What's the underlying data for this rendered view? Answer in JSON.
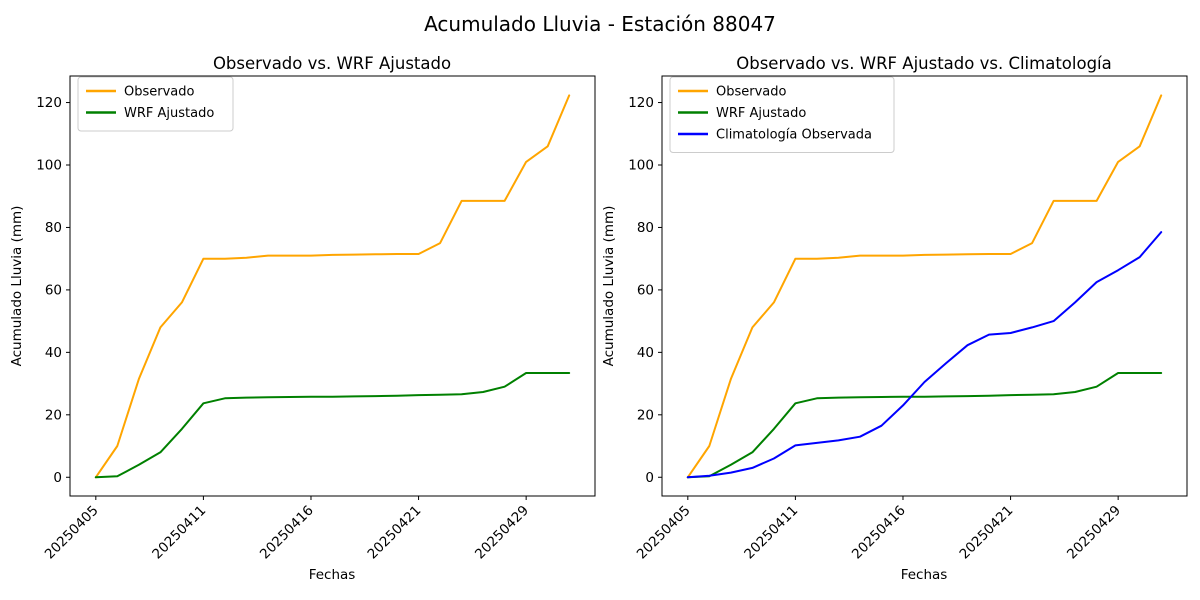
{
  "suptitle": "Acumulado Lluvia - Estación 88047",
  "accent_colors": {
    "observado": "#FFA500",
    "wrf_ajustado": "#008000",
    "climatologia": "#0000FF"
  },
  "chart_data": [
    {
      "type": "line",
      "title": "Observado vs. WRF Ajustado",
      "xlabel": "Fechas",
      "ylabel": "Acumulado Lluvia (mm)",
      "grid": false,
      "legend_position": "upper left",
      "yticks": [
        0,
        20,
        40,
        60,
        80,
        100,
        120
      ],
      "ylim": [
        -6,
        128.5
      ],
      "xlim": [
        -1.2,
        23.2
      ],
      "xtick_positions": [
        0,
        5,
        10,
        15,
        20
      ],
      "xtick_labels": [
        "20250405",
        "20250411",
        "20250416",
        "20250421",
        "20250429"
      ],
      "series": [
        {
          "name": "Observado",
          "color": "#FFA500",
          "values": [
            0,
            10,
            31.5,
            48,
            56,
            70,
            70,
            70.3,
            71,
            71,
            71,
            71.2,
            71.3,
            71.4,
            71.5,
            71.5,
            75,
            88.5,
            88.5,
            88.5,
            101,
            106,
            122.3
          ]
        },
        {
          "name": "WRF Ajustado",
          "color": "#008000",
          "values": [
            0,
            0.3,
            4,
            8,
            15.5,
            23.7,
            25.3,
            25.5,
            25.6,
            25.7,
            25.8,
            25.8,
            25.9,
            26,
            26.1,
            26.3,
            26.4,
            26.6,
            27.3,
            29,
            33.4,
            33.4,
            33.4
          ]
        }
      ]
    },
    {
      "type": "line",
      "title": "Observado vs. WRF Ajustado vs. Climatología",
      "xlabel": "Fechas",
      "ylabel": "Acumulado Lluvia (mm)",
      "grid": false,
      "legend_position": "upper left",
      "yticks": [
        0,
        20,
        40,
        60,
        80,
        100,
        120
      ],
      "ylim": [
        -6,
        128.5
      ],
      "xlim": [
        -1.2,
        23.2
      ],
      "xtick_positions": [
        0,
        5,
        10,
        15,
        20
      ],
      "xtick_labels": [
        "20250405",
        "20250411",
        "20250416",
        "20250421",
        "20250429"
      ],
      "series": [
        {
          "name": "Observado",
          "color": "#FFA500",
          "values": [
            0,
            10,
            31.5,
            48,
            56,
            70,
            70,
            70.3,
            71,
            71,
            71,
            71.2,
            71.3,
            71.4,
            71.5,
            71.5,
            75,
            88.5,
            88.5,
            88.5,
            101,
            106,
            122.3
          ]
        },
        {
          "name": "WRF Ajustado",
          "color": "#008000",
          "values": [
            0,
            0.3,
            4,
            8,
            15.5,
            23.7,
            25.3,
            25.5,
            25.6,
            25.7,
            25.8,
            25.8,
            25.9,
            26,
            26.1,
            26.3,
            26.4,
            26.6,
            27.3,
            29,
            33.4,
            33.4,
            33.4
          ]
        },
        {
          "name": "Climatología Observada",
          "color": "#0000FF",
          "values": [
            0,
            0.5,
            1.5,
            3,
            6,
            10.2,
            11,
            11.8,
            13,
            16.5,
            23,
            30.5,
            36.5,
            42.3,
            45.7,
            46.2,
            48,
            50,
            56,
            62.5,
            66.3,
            70.5,
            78.5
          ]
        }
      ]
    }
  ]
}
